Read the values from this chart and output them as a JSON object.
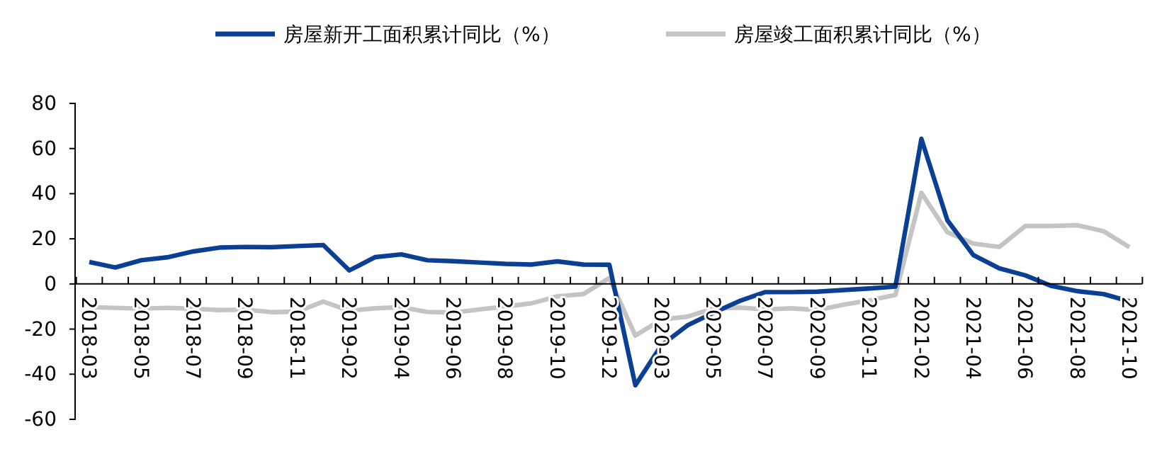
{
  "chart_data": {
    "type": "line",
    "categories": [
      "2018-03",
      null,
      "2018-05",
      null,
      "2018-07",
      null,
      "2018-09",
      null,
      "2018-11",
      null,
      "2019-02",
      null,
      "2019-04",
      null,
      "2019-06",
      null,
      "2019-08",
      null,
      "2019-10",
      null,
      "2019-12",
      null,
      "2020-03",
      null,
      "2020-05",
      null,
      "2020-07",
      null,
      "2020-09",
      null,
      "2020-11",
      null,
      "2021-02",
      null,
      "2021-04",
      null,
      "2021-06",
      null,
      "2021-08",
      null,
      "2021-10"
    ],
    "series": [
      {
        "name": "房屋新开工面积累计同比（%）",
        "color": "#0a3f94",
        "values": [
          9.7,
          7.3,
          10.5,
          11.8,
          14.4,
          16.1,
          16.4,
          16.3,
          16.8,
          17.2,
          6.0,
          11.9,
          13.1,
          10.5,
          10.1,
          9.5,
          8.9,
          8.6,
          10.0,
          8.6,
          8.5,
          -44.9,
          -27.2,
          -18.4,
          -12.8,
          -7.6,
          -3.6,
          -3.6,
          -3.4,
          -2.7,
          -2.0,
          -1.2,
          64.3,
          28.2,
          12.8,
          6.9,
          3.8,
          -0.9,
          -3.2,
          -4.5,
          -7.7
        ]
      },
      {
        "name": "房屋竣工面积累计同比（%）",
        "color": "#c4c4c4",
        "values": [
          -10.3,
          -10.6,
          -10.9,
          -10.6,
          -11.0,
          -11.6,
          -11.4,
          -12.5,
          -12.3,
          -7.8,
          -11.9,
          -10.8,
          -10.3,
          -12.4,
          -12.7,
          -11.3,
          -10.0,
          -8.6,
          -5.5,
          -4.5,
          2.6,
          -22.9,
          -15.8,
          -14.5,
          -10.9,
          -10.5,
          -11.3,
          -10.8,
          -11.6,
          -9.2,
          -7.3,
          -4.9,
          40.4,
          22.9,
          17.9,
          16.4,
          25.7,
          25.7,
          26.0,
          23.4,
          16.3
        ]
      }
    ],
    "ylim": [
      -60,
      80
    ],
    "yticks": [
      -60,
      -40,
      -20,
      0,
      20,
      40,
      60,
      80
    ],
    "legend": "top",
    "grid": false,
    "line_style": "solid",
    "marker": "none"
  }
}
